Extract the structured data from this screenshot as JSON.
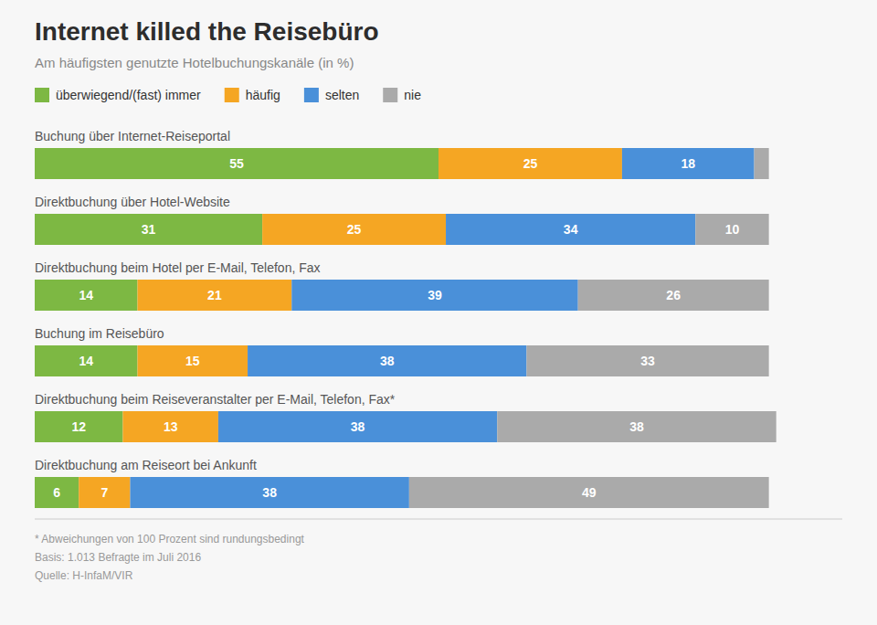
{
  "chart_data": {
    "type": "bar",
    "orientation": "horizontal",
    "stacked": true,
    "title": "Internet killed the Reisebüro",
    "subtitle": "Am häufigsten genutzte Hotelbuchungskanäle (in %)",
    "categories": [
      "Buchung über Internet-Reiseportal",
      "Direktbuchung über Hotel-Website",
      "Direktbuchung beim Hotel per E-Mail, Telefon, Fax",
      "Buchung im Reisebüro",
      "Direktbuchung beim Reiseveranstalter per E-Mail, Telefon, Fax*",
      "Direktbuchung am Reiseort bei Ankunft"
    ],
    "series": [
      {
        "name": "überwiegend/(fast) immer",
        "color": "#7db843",
        "values": [
          55,
          31,
          14,
          14,
          12,
          6
        ],
        "value_labels": [
          "55",
          "31",
          "14",
          "14",
          "12",
          "6"
        ]
      },
      {
        "name": "häufig",
        "color": "#f5a623",
        "values": [
          25,
          25,
          21,
          15,
          13,
          7
        ],
        "value_labels": [
          "25",
          "25",
          "21",
          "15",
          "13",
          "7"
        ]
      },
      {
        "name": "selten",
        "color": "#4a90d9",
        "values": [
          18,
          34,
          39,
          38,
          38,
          38
        ],
        "value_labels": [
          "18",
          "34",
          "39",
          "38",
          "38",
          "38"
        ]
      },
      {
        "name": "nie",
        "color": "#aaaaaa",
        "values": [
          2,
          10,
          26,
          33,
          38,
          49
        ],
        "value_labels": [
          null,
          "10",
          "26",
          "33",
          "38",
          "49"
        ]
      }
    ],
    "xlim": [
      0,
      110
    ],
    "data_labels": true,
    "tick_labels": "y",
    "legend": "top",
    "annotations": [
      "* Abweichungen von 100 Prozent sind rundungsbedingt",
      "Basis: 1.013 Befragte im Juli 2016",
      "Quelle: H-InfaM/VIR"
    ]
  }
}
